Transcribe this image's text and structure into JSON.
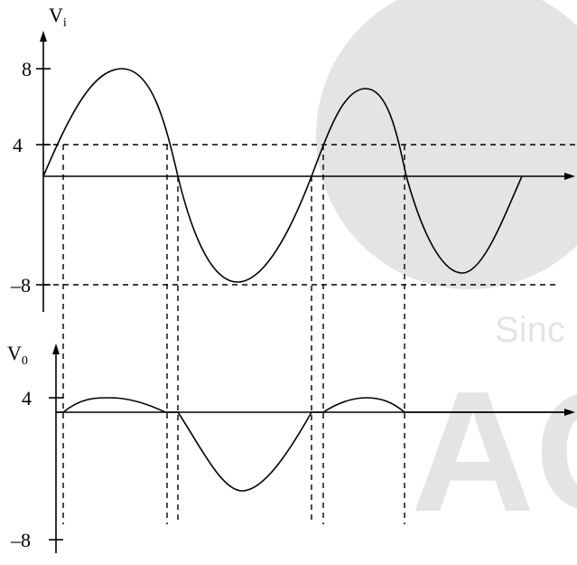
{
  "input_graph": {
    "axis_label": {
      "symbol": "V",
      "subscript": "i"
    },
    "tick_labels": [
      "8",
      "4",
      "–8"
    ]
  },
  "output_graph": {
    "axis_label": {
      "symbol": "V",
      "subscript": "0"
    },
    "tick_labels": [
      "4",
      "–8"
    ]
  },
  "watermark": {
    "line1": "Sinc",
    "line2": "AC"
  }
}
